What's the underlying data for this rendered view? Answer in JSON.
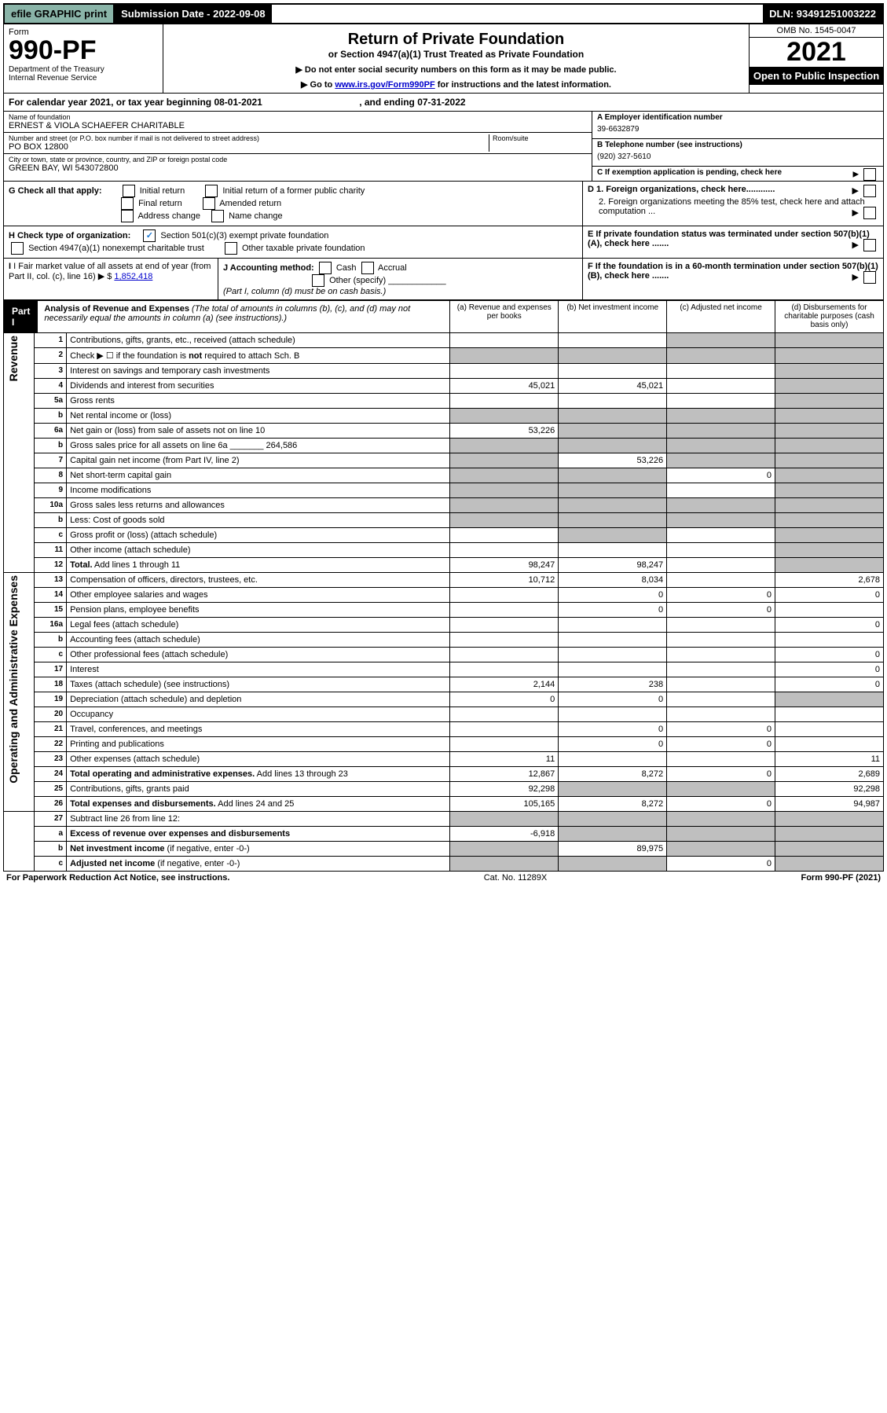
{
  "topbar": {
    "efile": "efile GRAPHIC print",
    "submission_label": "Submission Date - 2022-09-08",
    "dln": "DLN: 93491251003222"
  },
  "header": {
    "form_word": "Form",
    "form_number": "990-PF",
    "dept": "Department of the Treasury",
    "irs": "Internal Revenue Service",
    "title": "Return of Private Foundation",
    "subtitle": "or Section 4947(a)(1) Trust Treated as Private Foundation",
    "note1": "▶ Do not enter social security numbers on this form as it may be made public.",
    "note2_pre": "▶ Go to ",
    "note2_link": "www.irs.gov/Form990PF",
    "note2_post": " for instructions and the latest information.",
    "omb": "OMB No. 1545-0047",
    "year": "2021",
    "open": "Open to Public Inspection"
  },
  "cal": {
    "text_pre": "For calendar year 2021, or tax year beginning ",
    "begin": "08-01-2021",
    "mid": " , and ending ",
    "end": "07-31-2022"
  },
  "name_block": {
    "label": "Name of foundation",
    "value": "ERNEST & VIOLA SCHAEFER CHARITABLE"
  },
  "addr_block": {
    "label": "Number and street (or P.O. box number if mail is not delivered to street address)",
    "value": "PO BOX 12800",
    "room_label": "Room/suite"
  },
  "city_block": {
    "label": "City or town, state or province, country, and ZIP or foreign postal code",
    "value": "GREEN BAY, WI  543072800"
  },
  "ein": {
    "label": "A Employer identification number",
    "value": "39-6632879"
  },
  "phone": {
    "label": "B Telephone number (see instructions)",
    "value": "(920) 327-5610"
  },
  "c_label": "C If exemption application is pending, check here",
  "d1": "D 1. Foreign organizations, check here............",
  "d2": "2. Foreign organizations meeting the 85% test, check here and attach computation ...",
  "e_label": "E  If private foundation status was terminated under section 507(b)(1)(A), check here .......",
  "f_label": "F  If the foundation is in a 60-month termination under section 507(b)(1)(B), check here .......",
  "g": {
    "label": "G Check all that apply:",
    "opts": [
      "Initial return",
      "Initial return of a former public charity",
      "Final return",
      "Amended return",
      "Address change",
      "Name change"
    ]
  },
  "h": {
    "label": "H Check type of organization:",
    "o1": "Section 501(c)(3) exempt private foundation",
    "o2": "Section 4947(a)(1) nonexempt charitable trust",
    "o3": "Other taxable private foundation"
  },
  "i": {
    "label": "I Fair market value of all assets at end of year (from Part II, col. (c), line 16)",
    "value": "1,852,418"
  },
  "j": {
    "label": "J Accounting method:",
    "cash": "Cash",
    "accrual": "Accrual",
    "other": "Other (specify)",
    "note": "(Part I, column (d) must be on cash basis.)"
  },
  "part1": {
    "label": "Part I",
    "title": "Analysis of Revenue and Expenses",
    "title_note": " (The total of amounts in columns (b), (c), and (d) may not necessarily equal the amounts in column (a) (see instructions).)",
    "col_a": "(a) Revenue and expenses per books",
    "col_b": "(b) Net investment income",
    "col_c": "(c) Adjusted net income",
    "col_d": "(d) Disbursements for charitable purposes (cash basis only)"
  },
  "sideLabels": {
    "revenue": "Revenue",
    "expenses": "Operating and Administrative Expenses"
  },
  "rows": [
    {
      "n": "1",
      "d": "Contributions, gifts, grants, etc., received (attach schedule)",
      "a": "",
      "b": "",
      "c": "",
      "dCol": "",
      "shade": [
        "c",
        "d"
      ]
    },
    {
      "n": "2",
      "d": "Check ▶ ☐ if the foundation is <b>not</b> required to attach Sch. B",
      "a": "",
      "b": "",
      "c": "",
      "dCol": "",
      "shade": [
        "a",
        "b",
        "c",
        "d"
      ]
    },
    {
      "n": "3",
      "d": "Interest on savings and temporary cash investments",
      "a": "",
      "b": "",
      "c": "",
      "dCol": "",
      "shade": [
        "d"
      ]
    },
    {
      "n": "4",
      "d": "Dividends and interest from securities",
      "a": "45,021",
      "b": "45,021",
      "c": "",
      "dCol": "",
      "shade": [
        "d"
      ]
    },
    {
      "n": "5a",
      "d": "Gross rents",
      "a": "",
      "b": "",
      "c": "",
      "dCol": "",
      "shade": [
        "d"
      ]
    },
    {
      "n": "b",
      "d": "Net rental income or (loss)",
      "a": "",
      "b": "",
      "c": "",
      "dCol": "",
      "shade": [
        "a",
        "b",
        "c",
        "d"
      ]
    },
    {
      "n": "6a",
      "d": "Net gain or (loss) from sale of assets not on line 10",
      "a": "53,226",
      "b": "",
      "c": "",
      "dCol": "",
      "shade": [
        "b",
        "c",
        "d"
      ]
    },
    {
      "n": "b",
      "d": "Gross sales price for all assets on line 6a _______ 264,586",
      "a": "",
      "b": "",
      "c": "",
      "dCol": "",
      "shade": [
        "a",
        "b",
        "c",
        "d"
      ]
    },
    {
      "n": "7",
      "d": "Capital gain net income (from Part IV, line 2)",
      "a": "",
      "b": "53,226",
      "c": "",
      "dCol": "",
      "shade": [
        "a",
        "c",
        "d"
      ]
    },
    {
      "n": "8",
      "d": "Net short-term capital gain",
      "a": "",
      "b": "",
      "c": "0",
      "dCol": "",
      "shade": [
        "a",
        "b",
        "d"
      ]
    },
    {
      "n": "9",
      "d": "Income modifications",
      "a": "",
      "b": "",
      "c": "",
      "dCol": "",
      "shade": [
        "a",
        "b",
        "d"
      ]
    },
    {
      "n": "10a",
      "d": "Gross sales less returns and allowances",
      "a": "",
      "b": "",
      "c": "",
      "dCol": "",
      "shade": [
        "a",
        "b",
        "c",
        "d"
      ]
    },
    {
      "n": "b",
      "d": "Less: Cost of goods sold",
      "a": "",
      "b": "",
      "c": "",
      "dCol": "",
      "shade": [
        "a",
        "b",
        "c",
        "d"
      ]
    },
    {
      "n": "c",
      "d": "Gross profit or (loss) (attach schedule)",
      "a": "",
      "b": "",
      "c": "",
      "dCol": "",
      "shade": [
        "b",
        "d"
      ]
    },
    {
      "n": "11",
      "d": "Other income (attach schedule)",
      "a": "",
      "b": "",
      "c": "",
      "dCol": "",
      "shade": [
        "d"
      ]
    },
    {
      "n": "12",
      "d": "<b>Total.</b> Add lines 1 through 11",
      "a": "98,247",
      "b": "98,247",
      "c": "",
      "dCol": "",
      "shade": [
        "d"
      ]
    }
  ],
  "expRows": [
    {
      "n": "13",
      "d": "Compensation of officers, directors, trustees, etc.",
      "a": "10,712",
      "b": "8,034",
      "c": "",
      "dCol": "2,678"
    },
    {
      "n": "14",
      "d": "Other employee salaries and wages",
      "a": "",
      "b": "0",
      "c": "0",
      "dCol": "0"
    },
    {
      "n": "15",
      "d": "Pension plans, employee benefits",
      "a": "",
      "b": "0",
      "c": "0",
      "dCol": ""
    },
    {
      "n": "16a",
      "d": "Legal fees (attach schedule)",
      "a": "",
      "b": "",
      "c": "",
      "dCol": "0"
    },
    {
      "n": "b",
      "d": "Accounting fees (attach schedule)",
      "a": "",
      "b": "",
      "c": "",
      "dCol": ""
    },
    {
      "n": "c",
      "d": "Other professional fees (attach schedule)",
      "a": "",
      "b": "",
      "c": "",
      "dCol": "0"
    },
    {
      "n": "17",
      "d": "Interest",
      "a": "",
      "b": "",
      "c": "",
      "dCol": "0"
    },
    {
      "n": "18",
      "d": "Taxes (attach schedule) (see instructions)",
      "a": "2,144",
      "b": "238",
      "c": "",
      "dCol": "0"
    },
    {
      "n": "19",
      "d": "Depreciation (attach schedule) and depletion",
      "a": "0",
      "b": "0",
      "c": "",
      "dCol": "",
      "shade": [
        "d"
      ]
    },
    {
      "n": "20",
      "d": "Occupancy",
      "a": "",
      "b": "",
      "c": "",
      "dCol": ""
    },
    {
      "n": "21",
      "d": "Travel, conferences, and meetings",
      "a": "",
      "b": "0",
      "c": "0",
      "dCol": ""
    },
    {
      "n": "22",
      "d": "Printing and publications",
      "a": "",
      "b": "0",
      "c": "0",
      "dCol": ""
    },
    {
      "n": "23",
      "d": "Other expenses (attach schedule)",
      "a": "11",
      "b": "",
      "c": "",
      "dCol": "11"
    },
    {
      "n": "24",
      "d": "<b>Total operating and administrative expenses.</b> Add lines 13 through 23",
      "a": "12,867",
      "b": "8,272",
      "c": "0",
      "dCol": "2,689"
    },
    {
      "n": "25",
      "d": "Contributions, gifts, grants paid",
      "a": "92,298",
      "b": "",
      "c": "",
      "dCol": "92,298",
      "shade": [
        "b",
        "c"
      ]
    },
    {
      "n": "26",
      "d": "<b>Total expenses and disbursements.</b> Add lines 24 and 25",
      "a": "105,165",
      "b": "8,272",
      "c": "0",
      "dCol": "94,987"
    }
  ],
  "bottomRows": [
    {
      "n": "27",
      "d": "Subtract line 26 from line 12:",
      "a": "",
      "b": "",
      "c": "",
      "dCol": "",
      "shade": [
        "a",
        "b",
        "c",
        "d"
      ]
    },
    {
      "n": "a",
      "d": "<b>Excess of revenue over expenses and disbursements</b>",
      "a": "-6,918",
      "b": "",
      "c": "",
      "dCol": "",
      "shade": [
        "b",
        "c",
        "d"
      ]
    },
    {
      "n": "b",
      "d": "<b>Net investment income</b> (if negative, enter -0-)",
      "a": "",
      "b": "89,975",
      "c": "",
      "dCol": "",
      "shade": [
        "a",
        "c",
        "d"
      ]
    },
    {
      "n": "c",
      "d": "<b>Adjusted net income</b> (if negative, enter -0-)",
      "a": "",
      "b": "",
      "c": "0",
      "dCol": "",
      "shade": [
        "a",
        "b",
        "d"
      ]
    }
  ],
  "footer": {
    "left": "For Paperwork Reduction Act Notice, see instructions.",
    "mid": "Cat. No. 11289X",
    "right": "Form 990-PF (2021)"
  }
}
